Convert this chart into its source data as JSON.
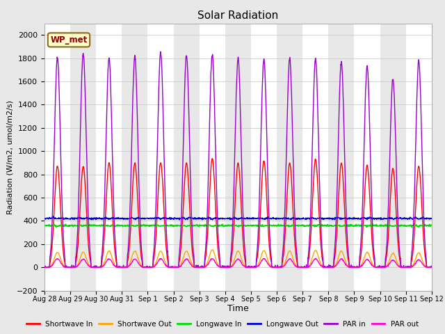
{
  "title": "Solar Radiation",
  "xlabel": "Time",
  "ylabel": "Radiation (W/m2, umol/m2/s)",
  "ylim": [
    -200,
    2100
  ],
  "yticks": [
    -200,
    0,
    200,
    400,
    600,
    800,
    1000,
    1200,
    1400,
    1600,
    1800,
    2000
  ],
  "fig_bg": "#e8e8e8",
  "plot_bg": "#f0f0f0",
  "annotation_text": "WP_met",
  "annotation_bg": "#ffffcc",
  "annotation_border": "#8b6914",
  "series": [
    {
      "label": "Shortwave In",
      "color": "#ff0000",
      "lw": 1.0
    },
    {
      "label": "Shortwave Out",
      "color": "#ffa500",
      "lw": 1.0
    },
    {
      "label": "Longwave In",
      "color": "#00dd00",
      "lw": 1.0
    },
    {
      "label": "Longwave Out",
      "color": "#0000dd",
      "lw": 1.0
    },
    {
      "label": "PAR in",
      "color": "#9900cc",
      "lw": 1.0
    },
    {
      "label": "PAR out",
      "color": "#ff00cc",
      "lw": 1.0
    }
  ],
  "n_days": 15,
  "day_labels": [
    "Aug 28",
    "Aug 29",
    "Aug 30",
    "Aug 31",
    "Sep 1",
    "Sep 2",
    "Sep 3",
    "Sep 4",
    "Sep 5",
    "Sep 6",
    "Sep 7",
    "Sep 8",
    "Sep 9",
    "Sep 10",
    "Sep 11",
    "Sep 12"
  ]
}
